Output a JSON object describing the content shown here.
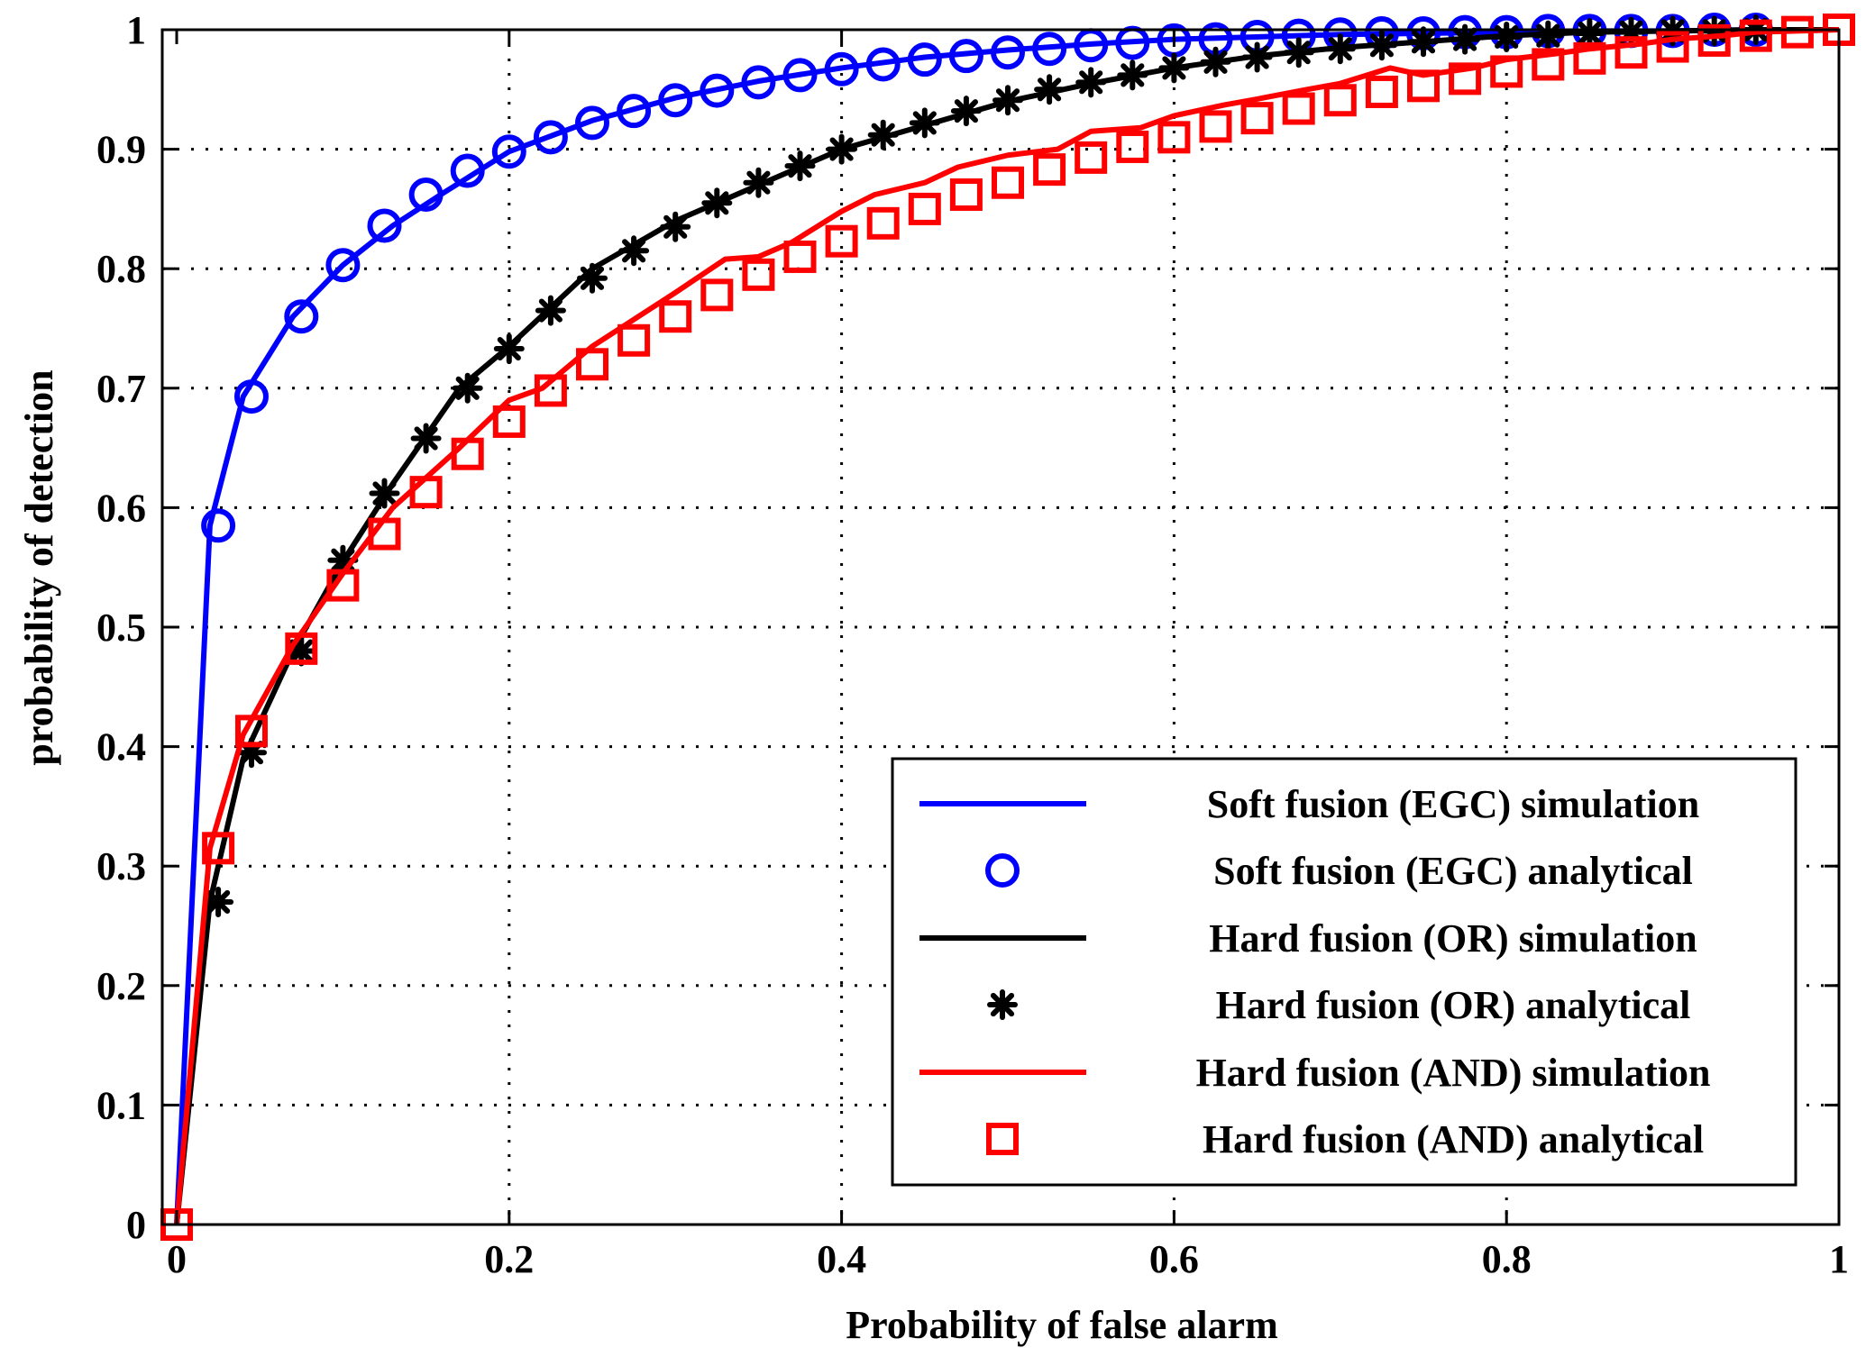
{
  "chart_data": {
    "type": "line",
    "title": "",
    "xlabel": "Probability of false alarm",
    "ylabel": "probability of detection",
    "xlim": [
      0,
      1
    ],
    "ylim": [
      0,
      1
    ],
    "grid": true,
    "legend_position": "bottom-right",
    "x_tick_labels": [
      "0",
      "0.2",
      "0.4",
      "0.6",
      "0.8",
      "1"
    ],
    "y_tick_labels": [
      "0",
      "0.1",
      "0.2",
      "0.3",
      "0.4",
      "0.5",
      "0.6",
      "0.7",
      "0.8",
      "0.9",
      "1"
    ],
    "series": [
      {
        "name": "Soft fusion (EGC) simulation",
        "style": "line",
        "color": "#0000ff",
        "x": [
          0,
          0.02,
          0.04,
          0.07,
          0.1,
          0.13,
          0.16,
          0.2,
          0.25,
          0.3,
          0.35,
          0.4,
          0.45,
          0.5,
          0.55,
          0.6,
          0.65,
          0.7,
          0.75,
          0.8,
          0.85,
          0.9,
          0.95,
          1.0
        ],
        "y": [
          0,
          0.585,
          0.693,
          0.76,
          0.803,
          0.836,
          0.863,
          0.898,
          0.924,
          0.943,
          0.957,
          0.968,
          0.977,
          0.983,
          0.988,
          0.992,
          0.994,
          0.996,
          0.997,
          0.998,
          0.999,
          0.999,
          1.0,
          1.0
        ]
      },
      {
        "name": "Soft fusion (EGC) analytical",
        "style": "marker",
        "marker": "circle",
        "color": "#0000ff",
        "x": [
          0.025,
          0.045,
          0.075,
          0.1,
          0.125,
          0.15,
          0.175,
          0.2,
          0.225,
          0.25,
          0.275,
          0.3,
          0.325,
          0.35,
          0.375,
          0.4,
          0.425,
          0.45,
          0.475,
          0.5,
          0.525,
          0.55,
          0.575,
          0.6,
          0.625,
          0.65,
          0.675,
          0.7,
          0.725,
          0.75,
          0.775,
          0.8,
          0.825,
          0.85,
          0.875,
          0.9,
          0.925,
          0.95
        ],
        "y": [
          0.585,
          0.693,
          0.76,
          0.803,
          0.836,
          0.862,
          0.882,
          0.898,
          0.91,
          0.922,
          0.932,
          0.941,
          0.949,
          0.956,
          0.962,
          0.967,
          0.971,
          0.975,
          0.978,
          0.981,
          0.984,
          0.987,
          0.989,
          0.991,
          0.992,
          0.994,
          0.995,
          0.996,
          0.997,
          0.997,
          0.998,
          0.998,
          0.999,
          0.999,
          0.999,
          0.999,
          1.0,
          1.0
        ]
      },
      {
        "name": "Hard fusion (OR) simulation",
        "style": "line",
        "color": "#000000",
        "x": [
          0,
          0.02,
          0.04,
          0.07,
          0.1,
          0.13,
          0.17,
          0.2,
          0.25,
          0.3,
          0.35,
          0.4,
          0.45,
          0.5,
          0.55,
          0.6,
          0.65,
          0.7,
          0.75,
          0.8,
          0.85,
          0.9,
          0.95,
          1.0
        ],
        "y": [
          0,
          0.27,
          0.39,
          0.48,
          0.555,
          0.62,
          0.7,
          0.735,
          0.8,
          0.84,
          0.87,
          0.9,
          0.92,
          0.94,
          0.955,
          0.968,
          0.978,
          0.985,
          0.99,
          0.995,
          0.998,
          0.999,
          1.0,
          1.0
        ]
      },
      {
        "name": "Hard fusion (OR) analytical",
        "style": "marker",
        "marker": "star",
        "color": "#000000",
        "x": [
          0.025,
          0.045,
          0.075,
          0.1,
          0.125,
          0.15,
          0.175,
          0.2,
          0.225,
          0.25,
          0.275,
          0.3,
          0.325,
          0.35,
          0.375,
          0.4,
          0.425,
          0.45,
          0.475,
          0.5,
          0.525,
          0.55,
          0.575,
          0.6,
          0.625,
          0.65,
          0.675,
          0.7,
          0.725,
          0.75,
          0.775,
          0.8,
          0.825,
          0.85,
          0.875,
          0.9,
          0.925,
          0.95
        ],
        "y": [
          0.27,
          0.395,
          0.48,
          0.556,
          0.612,
          0.658,
          0.7,
          0.733,
          0.765,
          0.792,
          0.815,
          0.835,
          0.855,
          0.872,
          0.886,
          0.9,
          0.912,
          0.922,
          0.932,
          0.941,
          0.95,
          0.956,
          0.962,
          0.968,
          0.973,
          0.977,
          0.981,
          0.984,
          0.987,
          0.99,
          0.992,
          0.994,
          0.995,
          0.997,
          0.998,
          0.999,
          0.999,
          1.0
        ]
      },
      {
        "name": "Hard fusion (AND) simulation",
        "style": "line",
        "color": "#ff0000",
        "x": [
          0,
          0.02,
          0.04,
          0.07,
          0.1,
          0.13,
          0.17,
          0.2,
          0.22,
          0.25,
          0.28,
          0.3,
          0.33,
          0.35,
          0.37,
          0.4,
          0.42,
          0.45,
          0.47,
          0.5,
          0.53,
          0.55,
          0.58,
          0.6,
          0.63,
          0.65,
          0.68,
          0.7,
          0.73,
          0.75,
          0.78,
          0.8,
          0.83,
          0.85,
          0.88,
          0.9,
          0.93,
          0.95,
          1.0
        ],
        "y": [
          0,
          0.315,
          0.41,
          0.485,
          0.545,
          0.6,
          0.65,
          0.69,
          0.7,
          0.735,
          0.762,
          0.78,
          0.808,
          0.81,
          0.822,
          0.848,
          0.862,
          0.872,
          0.885,
          0.895,
          0.9,
          0.915,
          0.918,
          0.928,
          0.937,
          0.942,
          0.95,
          0.955,
          0.968,
          0.962,
          0.968,
          0.975,
          0.98,
          0.984,
          0.988,
          0.992,
          0.995,
          0.998,
          1.0
        ]
      },
      {
        "name": "Hard fusion (AND) analytical",
        "style": "marker",
        "marker": "square",
        "color": "#ff0000",
        "x": [
          0,
          0.025,
          0.045,
          0.075,
          0.1,
          0.125,
          0.15,
          0.175,
          0.2,
          0.225,
          0.25,
          0.275,
          0.3,
          0.325,
          0.35,
          0.375,
          0.4,
          0.425,
          0.45,
          0.475,
          0.5,
          0.525,
          0.55,
          0.575,
          0.6,
          0.625,
          0.65,
          0.675,
          0.7,
          0.725,
          0.75,
          0.775,
          0.8,
          0.825,
          0.85,
          0.875,
          0.9,
          0.925,
          0.95,
          0.975,
          1.0
        ],
        "y": [
          0,
          0.315,
          0.413,
          0.482,
          0.535,
          0.578,
          0.613,
          0.645,
          0.672,
          0.698,
          0.72,
          0.74,
          0.76,
          0.778,
          0.795,
          0.81,
          0.823,
          0.838,
          0.85,
          0.862,
          0.872,
          0.883,
          0.893,
          0.902,
          0.91,
          0.919,
          0.926,
          0.934,
          0.941,
          0.948,
          0.953,
          0.959,
          0.965,
          0.971,
          0.976,
          0.981,
          0.986,
          0.991,
          0.995,
          0.998,
          1.0
        ]
      }
    ]
  }
}
